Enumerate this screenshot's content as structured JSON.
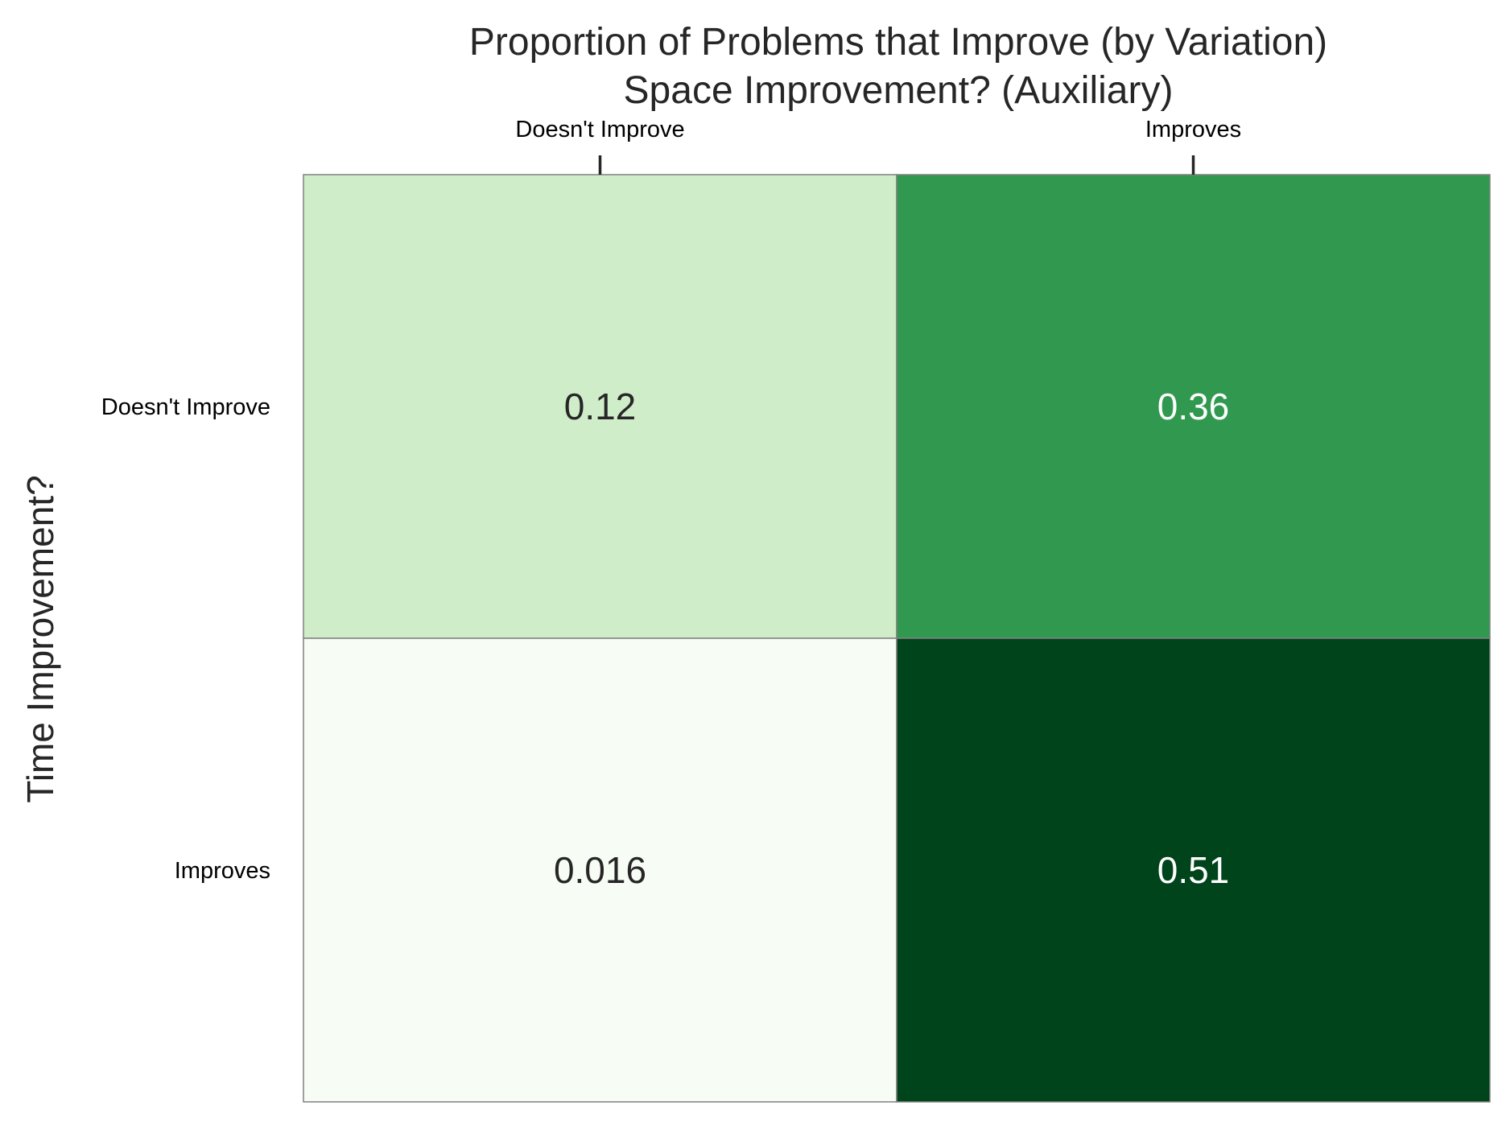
{
  "chart_data": {
    "type": "heatmap",
    "title": "Proportion of Problems that Improve (by Variation)",
    "subtitle": "Space Improvement? (Auxiliary)",
    "ylabel": "Time Improvement?",
    "x_categories": [
      "Doesn't Improve",
      "Improves"
    ],
    "y_categories": [
      "Doesn't Improve",
      "Improves"
    ],
    "values": [
      [
        0.12,
        0.36
      ],
      [
        0.016,
        0.51
      ]
    ],
    "cell_labels": [
      [
        "0.12",
        "0.36"
      ],
      [
        "0.016",
        "0.51"
      ]
    ],
    "colormap": "Greens",
    "vmin": 0.016,
    "vmax": 0.51,
    "x_axis_position": "top",
    "legend": "none",
    "grid": false,
    "colors": {
      "low": "#f7fcf5",
      "high": "#00441b",
      "cell_border": "#808080",
      "dark_text": "#262626",
      "light_text": "#ffffff"
    }
  }
}
